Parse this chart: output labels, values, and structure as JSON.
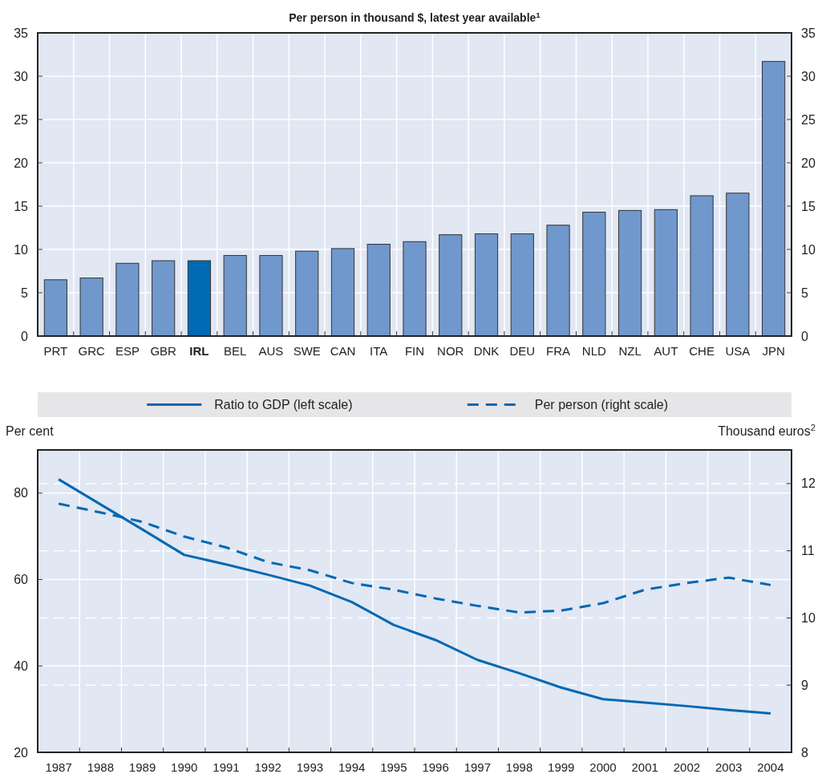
{
  "chart_data": [
    {
      "type": "bar",
      "title": "Per person in thousand $, latest year available$^{1}$",
      "categories": [
        "PRT",
        "GRC",
        "ESP",
        "GBR",
        "IRL",
        "BEL",
        "AUS",
        "SWE",
        "CAN",
        "ITA",
        "FIN",
        "NOR",
        "DNK",
        "DEU",
        "FRA",
        "NLD",
        "NZL",
        "AUT",
        "CHE",
        "USA",
        "JPN"
      ],
      "values": [
        6.5,
        6.7,
        8.4,
        8.7,
        8.7,
        9.3,
        9.3,
        9.8,
        10.1,
        10.6,
        10.9,
        11.7,
        11.8,
        11.8,
        12.8,
        14.3,
        14.5,
        14.6,
        16.2,
        16.5,
        31.7
      ],
      "colors": [
        "#7098cc",
        "#7098cc",
        "#7098cc",
        "#7098cc",
        "#006ab4",
        "#7098cc",
        "#7098cc",
        "#7098cc",
        "#7098cc",
        "#7098cc",
        "#7098cc",
        "#7098cc",
        "#7098cc",
        "#7098cc",
        "#7098cc",
        "#7098cc",
        "#7098cc",
        "#7098cc",
        "#7098cc",
        "#7098cc",
        "#7098cc"
      ],
      "ylim": [
        0,
        35
      ],
      "yticks": [
        0,
        5,
        10,
        15,
        20,
        25,
        30,
        35
      ],
      "y2lim": [
        0,
        35
      ],
      "y2ticks": [
        0,
        5,
        10,
        15,
        20,
        25,
        30,
        35
      ],
      "grid": true
    },
    {
      "type": "line",
      "ylabel": "Per cent",
      "y2label": "Thousand euros$^{2}$",
      "categories": [
        "1987",
        "1988",
        "1989",
        "1990",
        "1991",
        "1992",
        "1993",
        "1994",
        "1995",
        "1996",
        "1997",
        "1998",
        "1999",
        "2000",
        "2001",
        "2002",
        "2003",
        "2004"
      ],
      "series": [
        {
          "name": "Ratio to GDP (left scale)",
          "color": "#0068b4",
          "line_style": "solid",
          "values": [
            83.2,
            77.4,
            71.6,
            65.7,
            63.5,
            61.1,
            58.6,
            54.8,
            49.5,
            46.0,
            41.4,
            38.3,
            35.0,
            32.3,
            31.5,
            30.7,
            29.8,
            29.0
          ]
        },
        {
          "name": "Per person (right scale)",
          "color": "#0068b4",
          "line_style": "dashed",
          "axis": "y2",
          "values": [
            11.7,
            11.57,
            11.43,
            11.21,
            11.05,
            10.83,
            10.71,
            10.52,
            10.42,
            10.29,
            10.18,
            10.08,
            10.11,
            10.22,
            10.42,
            10.52,
            10.6,
            10.49
          ]
        }
      ],
      "ylim": [
        20,
        90
      ],
      "yticks": [
        20,
        40,
        60,
        80
      ],
      "y2lim": [
        8,
        12.5
      ],
      "y2ticks": [
        8,
        9,
        10,
        11,
        12
      ],
      "grid": true,
      "legend": "top"
    }
  ]
}
